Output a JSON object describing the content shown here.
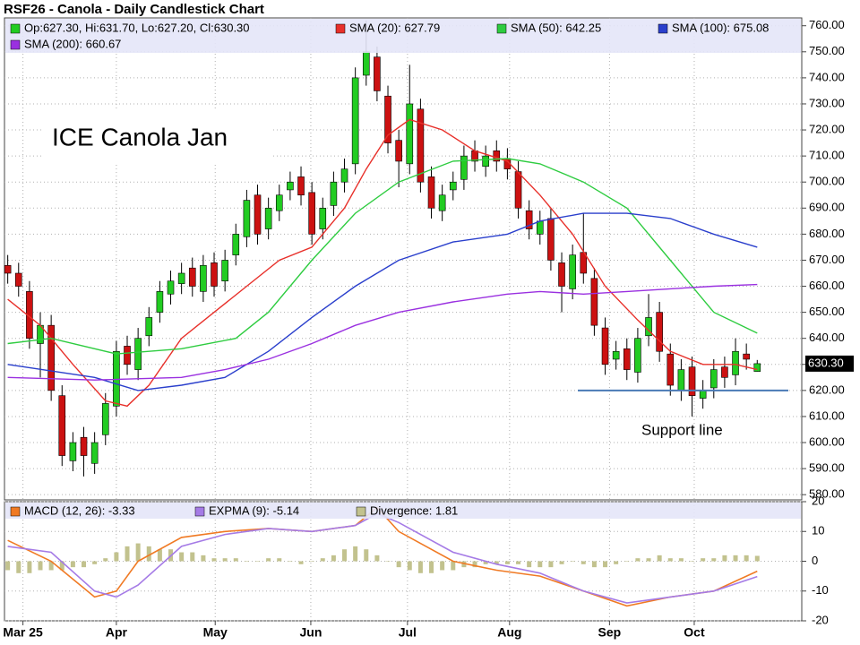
{
  "chart_data": [
    {
      "type": "candlestick",
      "title": "RSF26 - Canola - Daily Candlestick Chart",
      "ohlc_label": "Op:627.30, Hi:631.70, Lo:627.20, Cl:630.30",
      "annotation": "ICE Canola Jan",
      "support_label": "Support line",
      "support_level": 620,
      "support_color": "#4a7ab5",
      "last_price": {
        "value": 630.3,
        "label": "630.30"
      },
      "up_color": "#22cc22",
      "down_color": "#cc1111",
      "candles": {
        "open": [
          668,
          665,
          658,
          638,
          645,
          618,
          593,
          602,
          592,
          603,
          614,
          637,
          628,
          641,
          650,
          657,
          661,
          667,
          658,
          669,
          662,
          672,
          679,
          695,
          682,
          689,
          697,
          702,
          696,
          682,
          691,
          700,
          707,
          741,
          748,
          733,
          716,
          707,
          728,
          702,
          689,
          697,
          701,
          712,
          706,
          712,
          709,
          704,
          689,
          680,
          686,
          669,
          659,
          673,
          663,
          644,
          632,
          636,
          627,
          641,
          650,
          634,
          620,
          629,
          617,
          621,
          629,
          626,
          634,
          627.3
        ],
        "high": [
          672,
          669,
          662,
          650,
          649,
          622,
          604,
          606,
          604,
          619,
          639,
          641,
          644,
          652,
          662,
          666,
          669,
          671,
          672,
          673,
          674,
          684,
          697,
          699,
          694,
          699,
          704,
          706,
          700,
          694,
          704,
          709,
          744,
          762,
          752,
          737,
          720,
          745,
          732,
          706,
          699,
          704,
          714,
          716,
          714,
          716,
          713,
          708,
          693,
          689,
          690,
          673,
          676,
          688,
          667,
          648,
          639,
          640,
          644,
          657,
          654,
          638,
          632,
          633,
          624,
          632,
          633,
          640,
          638,
          631.7
        ],
        "low": [
          661,
          656,
          636,
          625,
          616,
          591,
          589,
          587,
          588,
          599,
          610,
          626,
          624,
          637,
          646,
          653,
          657,
          656,
          654,
          656,
          658,
          668,
          675,
          676,
          678,
          685,
          693,
          691,
          676,
          678,
          687,
          696,
          703,
          737,
          731,
          711,
          698,
          703,
          696,
          686,
          685,
          693,
          697,
          704,
          702,
          704,
          701,
          686,
          678,
          676,
          666,
          650,
          655,
          661,
          641,
          626,
          628,
          624,
          623,
          637,
          631,
          618,
          616,
          610,
          613,
          617,
          621,
          622,
          628,
          627.2
        ],
        "close": [
          665,
          660,
          640,
          645,
          620,
          595,
          600,
          595,
          600,
          615,
          635,
          630,
          640,
          648,
          658,
          662,
          665,
          660,
          668,
          660,
          670,
          680,
          693,
          680,
          690,
          695,
          700,
          695,
          680,
          690,
          700,
          705,
          740,
          750,
          735,
          715,
          708,
          730,
          700,
          690,
          695,
          700,
          710,
          708,
          710,
          708,
          705,
          690,
          682,
          685,
          670,
          660,
          672,
          665,
          645,
          630,
          635,
          628,
          640,
          648,
          635,
          622,
          628,
          618,
          620,
          628,
          625,
          635,
          632,
          630.3
        ]
      },
      "series": [
        {
          "name": "SMA (20): 627.79",
          "color": "#e8302a",
          "x": [
            0,
            3,
            6,
            9,
            11,
            13,
            16,
            19,
            22,
            25,
            28,
            31,
            33,
            35,
            37,
            40,
            43,
            46,
            49,
            52,
            55,
            58,
            61,
            64,
            67,
            69
          ],
          "values": [
            655,
            645,
            630,
            616,
            614,
            622,
            640,
            650,
            660,
            670,
            675,
            690,
            705,
            718,
            724,
            720,
            712,
            708,
            695,
            680,
            660,
            647,
            635,
            630,
            630,
            628
          ]
        },
        {
          "name": "SMA (50): 642.25",
          "color": "#2ecc40",
          "x": [
            0,
            4,
            10,
            16,
            21,
            24,
            28,
            32,
            36,
            41,
            46,
            49,
            53,
            57,
            61,
            65,
            69
          ],
          "values": [
            638,
            640,
            634,
            636,
            640,
            650,
            670,
            688,
            700,
            708,
            709,
            707,
            700,
            690,
            670,
            650,
            642
          ]
        },
        {
          "name": "SMA (100): 675.08",
          "color": "#2a3fcc",
          "x": [
            0,
            8,
            12,
            16,
            20,
            24,
            28,
            32,
            36,
            41,
            46,
            49,
            53,
            57,
            61,
            65,
            69
          ],
          "values": [
            630,
            625,
            620,
            622,
            625,
            635,
            648,
            660,
            670,
            677,
            680,
            685,
            688,
            688,
            686,
            680,
            675
          ]
        },
        {
          "name": "SMA (200): 660.67",
          "color": "#9a30e0",
          "x": [
            0,
            8,
            16,
            20,
            24,
            28,
            32,
            36,
            41,
            46,
            49,
            53,
            57,
            61,
            65,
            69
          ],
          "values": [
            625,
            624,
            625,
            628,
            632,
            638,
            645,
            650,
            654,
            657,
            658,
            657,
            658,
            659,
            660,
            660.67
          ]
        }
      ],
      "xlim": [
        -0.3,
        73.1
      ],
      "ylim": [
        578,
        763
      ],
      "yticks": [
        {
          "value": 580,
          "label": "580.00"
        },
        {
          "value": 590,
          "label": "590.00"
        },
        {
          "value": 600,
          "label": "600.00"
        },
        {
          "value": 610,
          "label": "610.00"
        },
        {
          "value": 620,
          "label": "620.00"
        },
        {
          "value": 630,
          "label": "630.00"
        },
        {
          "value": 640,
          "label": "640.00"
        },
        {
          "value": 650,
          "label": "650.00"
        },
        {
          "value": 660,
          "label": "660.00"
        },
        {
          "value": 670,
          "label": "670.00"
        },
        {
          "value": 680,
          "label": "680.00"
        },
        {
          "value": 690,
          "label": "690.00"
        },
        {
          "value": 700,
          "label": "700.00"
        },
        {
          "value": 710,
          "label": "710.00"
        },
        {
          "value": 720,
          "label": "720.00"
        },
        {
          "value": 730,
          "label": "730.00"
        },
        {
          "value": 740,
          "label": "740.00"
        },
        {
          "value": 750,
          "label": "750.00"
        },
        {
          "value": 760,
          "label": "760.00"
        }
      ],
      "grid": true
    },
    {
      "type": "macd",
      "series": [
        {
          "name": "MACD (12, 26): -3.33",
          "color": "#f07a24",
          "x": [
            0,
            4,
            8,
            10,
            12,
            16,
            20,
            24,
            28,
            32,
            34,
            36,
            41,
            45,
            49,
            53,
            57,
            61,
            65,
            69
          ],
          "values": [
            7,
            0,
            -12,
            -10,
            0,
            8,
            10,
            11,
            10,
            12,
            18,
            10,
            0,
            -3,
            -5,
            -10,
            -15,
            -12,
            -10,
            -3.33
          ]
        },
        {
          "name": "EXPMA (9): -5.14",
          "color": "#a57be6",
          "x": [
            0,
            4,
            8,
            10,
            12,
            16,
            20,
            24,
            28,
            32,
            34,
            36,
            41,
            45,
            49,
            53,
            57,
            61,
            65,
            69
          ],
          "values": [
            5,
            3,
            -10,
            -12,
            -8,
            5,
            9,
            11,
            10,
            12,
            16,
            13,
            3,
            -1,
            -4,
            -10,
            -14,
            -12,
            -10,
            -5.14
          ]
        }
      ],
      "divergence": {
        "name": "Divergence: 1.81",
        "color": "#c2c28e",
        "values": [
          -3,
          -4,
          -4,
          -3,
          -3,
          -3,
          -2,
          -2,
          -1,
          1,
          3,
          5,
          6,
          5,
          4,
          4,
          3,
          3,
          2,
          1,
          1,
          1,
          0,
          0,
          1,
          1,
          0,
          -1,
          0,
          1,
          2,
          4,
          5,
          4,
          2,
          0,
          -2,
          -3,
          -4,
          -4,
          -3,
          -3,
          -2,
          -2,
          -1,
          -1,
          -1,
          -1,
          -2,
          -2,
          -2,
          -1,
          0,
          -1,
          -2,
          -2,
          -1,
          0,
          1,
          1,
          2,
          1,
          1,
          0,
          1,
          1,
          2,
          2,
          2,
          1.81
        ]
      },
      "xlim": [
        -0.3,
        73.1
      ],
      "ylim": [
        -20,
        20
      ],
      "yticks": [
        20,
        10,
        0,
        -10,
        -20
      ],
      "xticks": [
        {
          "value": 1.4,
          "label": "Mar 25"
        },
        {
          "value": 10,
          "label": "Apr"
        },
        {
          "value": 19.1,
          "label": "May"
        },
        {
          "value": 27.9,
          "label": "Jun"
        },
        {
          "value": 36.8,
          "label": "Jul"
        },
        {
          "value": 46.2,
          "label": "Aug"
        },
        {
          "value": 55.4,
          "label": "Sep"
        },
        {
          "value": 63.2,
          "label": "Oct"
        }
      ],
      "grid": true
    }
  ]
}
